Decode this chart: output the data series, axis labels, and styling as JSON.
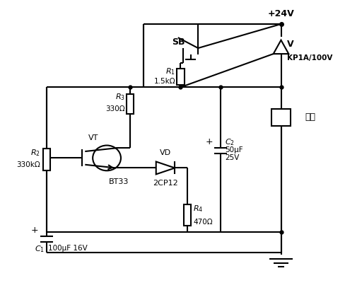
{
  "bg_color": "#ffffff",
  "line_color": "#000000",
  "line_width": 1.5,
  "figsize": [
    4.89,
    4.34
  ],
  "dpi": 100,
  "labels": {
    "vcc": "+24V",
    "sb": "SB",
    "thyristor_v": "V",
    "thyristor_model": "KP1A/100V",
    "r1_label": "$R_1$",
    "r1_val": "1.5kΩ",
    "r2_label": "$R_2$",
    "r2_val": "330kΩ",
    "r3_label": "$R_3$",
    "r3_val": "330Ω",
    "r4_label": "$R_4$",
    "r4_val": "470Ω",
    "c1_label": "$C_1$",
    "c1_val": "100μF 16V",
    "c2_label": "$C_2$",
    "c2_val_1": "50μF",
    "c2_val_2": "25V",
    "vt_label": "VT",
    "vt_model": "BT33",
    "vd_label": "VD",
    "vd_model": "2CP12",
    "load": "负载"
  }
}
